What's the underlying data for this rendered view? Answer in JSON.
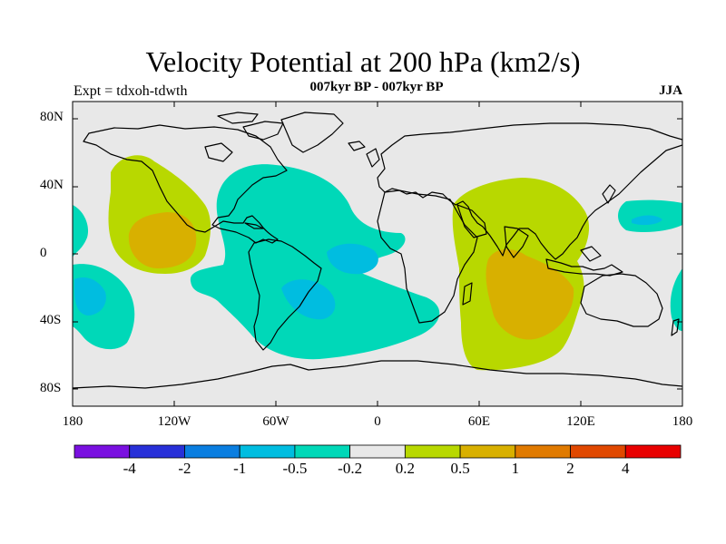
{
  "title": "Velocity Potential at 200 hPa (km2/s)",
  "subtitle": "007kyr BP - 007kyr BP",
  "left_label": "Expt = tdxoh-tdwth",
  "right_label": "JJA",
  "colors": {
    "ocean_background": "#e8e8e8",
    "coast": "#000000",
    "neg_0_2_to_0_5": "#00d8b8",
    "neg_0_5_to_1": "#00bde0",
    "pos_0_2_to_0_5": "#b8d800",
    "pos_0_5_to_1": "#d8b000"
  },
  "map": {
    "projection": "cylindrical-equidistant",
    "lon_range": [
      -180,
      180
    ],
    "lat_range": [
      -90,
      90
    ],
    "y_ticks": [
      "80N",
      "40N",
      "0",
      "40S",
      "80S"
    ],
    "x_ticks": [
      "180",
      "120W",
      "60W",
      "0",
      "60E",
      "120E",
      "180"
    ]
  },
  "colorbar": {
    "colors": [
      "#7a10e0",
      "#2830d8",
      "#0a7ee0",
      "#00bde0",
      "#00d8b8",
      "#e8e8e8",
      "#b8d800",
      "#d8b000",
      "#e07a00",
      "#e04800",
      "#e80000"
    ],
    "labels": [
      "-4",
      "-2",
      "-1",
      "-0.5",
      "-0.2",
      "0.2",
      "0.5",
      "1",
      "2",
      "4"
    ]
  }
}
